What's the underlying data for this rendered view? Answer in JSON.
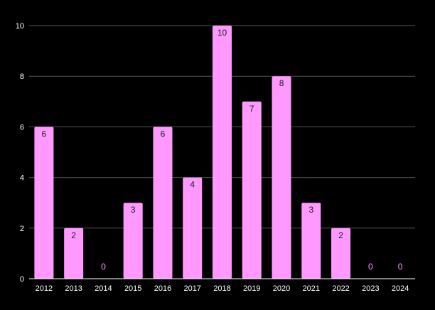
{
  "chart_data": {
    "type": "bar",
    "categories": [
      "2012",
      "2013",
      "2014",
      "2015",
      "2016",
      "2017",
      "2018",
      "2019",
      "2020",
      "2021",
      "2022",
      "2023",
      "2024"
    ],
    "values": [
      6,
      2,
      0,
      3,
      6,
      4,
      10,
      7,
      8,
      3,
      2,
      0,
      0
    ],
    "title": "",
    "xlabel": "",
    "ylabel": "",
    "ylim": [
      0,
      10
    ],
    "yticks": [
      0,
      2,
      4,
      6,
      8,
      10
    ],
    "grid": true,
    "legend": "none",
    "data_labels": true,
    "colors": {
      "background": "#000000",
      "bar": "#ff99ff",
      "gridline": "#555555",
      "axis": "#ffffff",
      "tick_text": "#ffffff",
      "label_inside": "#1a1a1a",
      "label_zero": "#ff99ff"
    }
  }
}
